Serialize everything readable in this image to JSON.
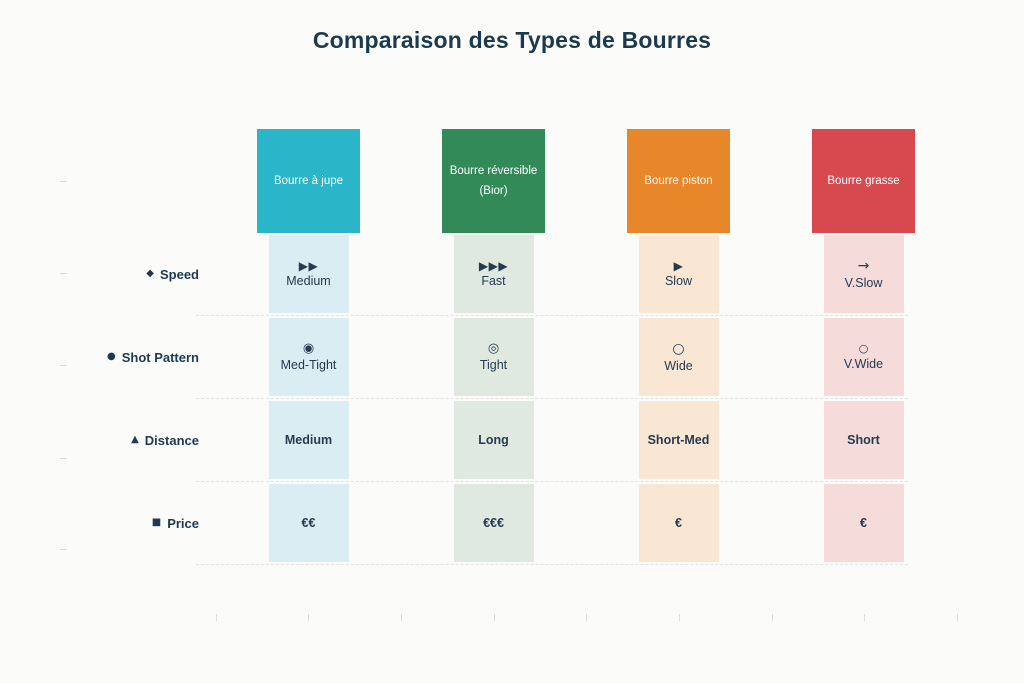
{
  "colors": {
    "background": "#fbfbfa",
    "title_text": "#1c3a4d",
    "label_text": "#1e3a52",
    "value_text": "#263a50",
    "header_text": "#ffffff",
    "grid_dash": "#e2e2e2",
    "tick": "#dcdcdc"
  },
  "chart_data": {
    "type": "table",
    "title": "Comparaison des Types de Bourres",
    "columns": [
      {
        "label": "Bourre à jupe",
        "header_color": "#2ab6c8",
        "cell_color": "#d9edf3"
      },
      {
        "label": "Bourre réversible (Bior)",
        "header_color": "#338a59",
        "cell_color": "#dfe9df"
      },
      {
        "label": "Bourre piston",
        "header_color": "#e8862a",
        "cell_color": "#f9e7d4"
      },
      {
        "label": "Bourre grasse",
        "header_color": "#d8494f",
        "cell_color": "#f6dbdb"
      }
    ],
    "rows": [
      {
        "label": "Speed",
        "label_icon": "diamond",
        "label_glyph": "◆",
        "bold": false,
        "cells": [
          {
            "icon": "play-double",
            "glyph": "▶▶",
            "text": "Medium"
          },
          {
            "icon": "play-triple",
            "glyph": "▶▶▶",
            "text": "Fast"
          },
          {
            "icon": "play-single",
            "glyph": "▶",
            "text": "Slow"
          },
          {
            "icon": "arrow-right",
            "glyph": "→",
            "text": "V.Slow"
          }
        ]
      },
      {
        "label": "Shot Pattern",
        "label_icon": "circle",
        "label_glyph": "●",
        "bold": false,
        "cells": [
          {
            "icon": "fisheye",
            "glyph": "◉",
            "text": "Med-Tight"
          },
          {
            "icon": "bullseye",
            "glyph": "◎",
            "text": "Tight"
          },
          {
            "icon": "circle",
            "glyph": "○",
            "text": "Wide"
          },
          {
            "icon": "circle-small",
            "glyph": "○",
            "text": "V.Wide"
          }
        ]
      },
      {
        "label": "Distance",
        "label_icon": "triangle",
        "label_glyph": "▲",
        "bold": true,
        "cells": [
          {
            "text": "Medium"
          },
          {
            "text": "Long"
          },
          {
            "text": "Short-Med"
          },
          {
            "text": "Short"
          }
        ]
      },
      {
        "label": "Price",
        "label_icon": "square",
        "label_glyph": "■",
        "bold": true,
        "cells": [
          {
            "text": "€€"
          },
          {
            "text": "€€€"
          },
          {
            "text": "€"
          },
          {
            "text": "€"
          }
        ]
      }
    ]
  }
}
